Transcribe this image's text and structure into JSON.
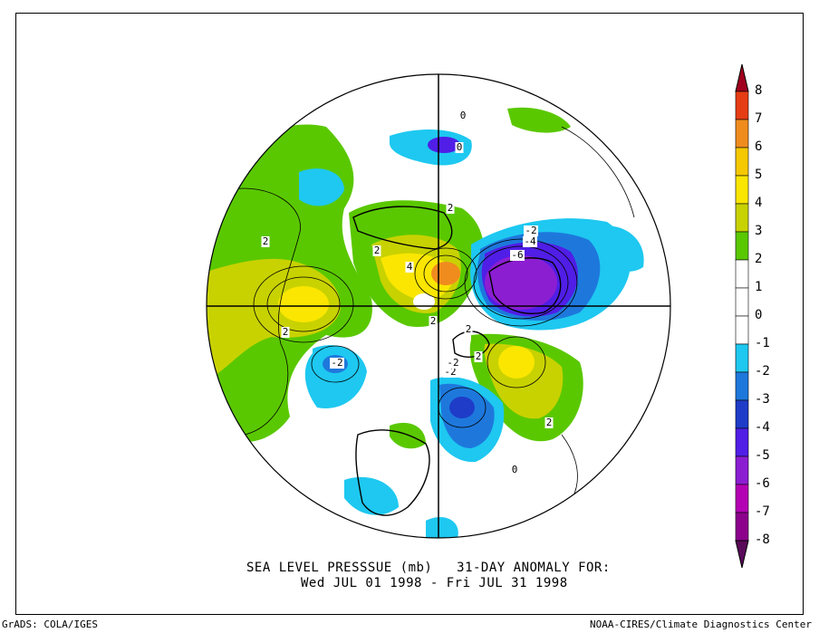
{
  "title": {
    "line1": "SEA LEVEL PRESSSUE (mb)   31-DAY ANOMALY FOR:",
    "line2": "Wed JUL 01 1998 - Fri JUL 31 1998"
  },
  "footer": {
    "left": "GrADS: COLA/IGES",
    "right": "NOAA-CIRES/Climate Diagnostics Center"
  },
  "colorbar": {
    "levels": [
      {
        "label": "8",
        "color": "#a0001e"
      },
      {
        "label": "7",
        "color": "#e63c14"
      },
      {
        "label": "6",
        "color": "#f08c1e"
      },
      {
        "label": "5",
        "color": "#f5c800"
      },
      {
        "label": "4",
        "color": "#fae600"
      },
      {
        "label": "3",
        "color": "#c8d200"
      },
      {
        "label": "2",
        "color": "#5ac800"
      },
      {
        "label": "1",
        "color": "#ffffff"
      },
      {
        "label": "0",
        "color": "#ffffff"
      },
      {
        "label": "-1",
        "color": "#1ec8f0"
      },
      {
        "label": "-2",
        "color": "#1e78dc"
      },
      {
        "label": "-3",
        "color": "#1e3cc8"
      },
      {
        "label": "-4",
        "color": "#501ee6"
      },
      {
        "label": "-5",
        "color": "#8c1ed2"
      },
      {
        "label": "-6",
        "color": "#b400b4"
      },
      {
        "label": "-7",
        "color": "#8c008c"
      },
      {
        "label": "-8",
        "color": "#5a0a5a"
      }
    ]
  },
  "contour_labels": [
    "2",
    "2",
    "2",
    "2",
    "-2",
    "4",
    "2",
    "-2",
    "-4",
    "-6",
    "2",
    "2",
    "2",
    "-2",
    "-2",
    "0",
    "0",
    "0"
  ]
}
